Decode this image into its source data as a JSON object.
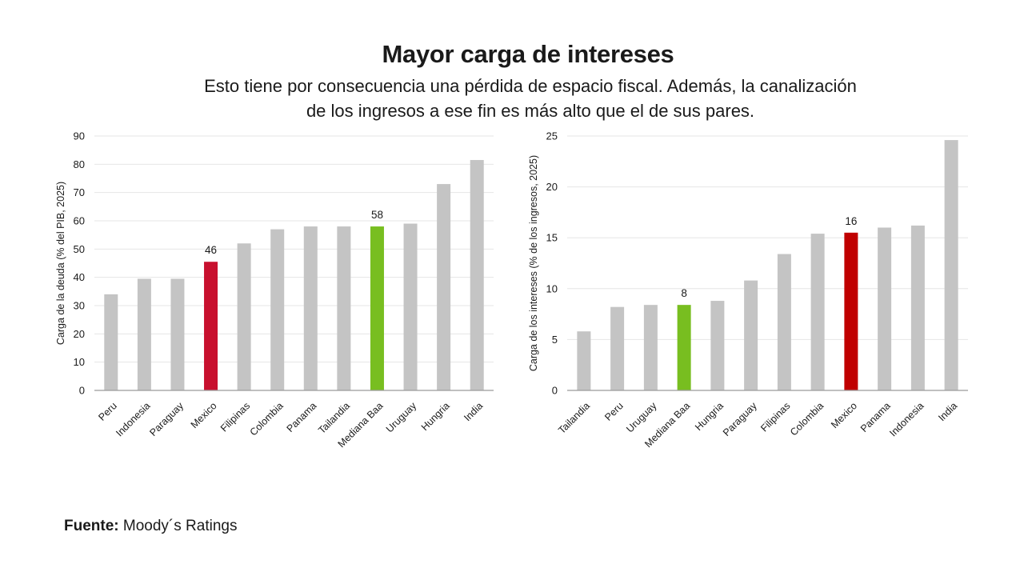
{
  "title": "Mayor carga de intereses",
  "subtitle_line1": "Esto tiene por consecuencia una pérdida de espacio fiscal. Además, la canalización",
  "subtitle_line2": "de los ingresos a ese fin es más alto que el de sus pares.",
  "source_label": "Fuente:",
  "source_text": "Moody´s Ratings",
  "colors": {
    "default_bar": "#c4c4c4",
    "mexico_left": "#c8102e",
    "mexico_right": "#c00000",
    "baa_median": "#78be20"
  },
  "chart_data": [
    {
      "type": "bar",
      "ylabel": "Carga de la deuda (% del PIB, 2025)",
      "ylim": [
        0,
        90
      ],
      "yticks": [
        0,
        10,
        20,
        30,
        40,
        50,
        60,
        70,
        80,
        90
      ],
      "grid": true,
      "categories": [
        "Peru",
        "Indonesia",
        "Paraguay",
        "Mexico",
        "Filipinas",
        "Colombia",
        "Panama",
        "Tailandia",
        "Mediana Baa",
        "Uruguay",
        "Hungria",
        "India"
      ],
      "values": [
        34,
        39.5,
        39.5,
        45.5,
        52,
        57,
        58,
        58,
        58,
        59,
        73,
        81.5
      ],
      "highlight": {
        "Mexico": "mexico_left",
        "Mediana Baa": "baa_median"
      },
      "data_labels": {
        "Mexico": "46",
        "Mediana Baa": "58"
      }
    },
    {
      "type": "bar",
      "ylabel": "Carga de los intereses (% de los ingresos, 2025)",
      "ylim": [
        0,
        25
      ],
      "yticks": [
        0,
        5,
        10,
        15,
        20,
        25
      ],
      "grid": true,
      "categories": [
        "Tailandia",
        "Peru",
        "Uruguay",
        "Mediana Baa",
        "Hungria",
        "Paraguay",
        "Filipinas",
        "Colombia",
        "Mexico",
        "Panama",
        "Indonesia",
        "India"
      ],
      "values": [
        5.8,
        8.2,
        8.4,
        8.4,
        8.8,
        10.8,
        13.4,
        15.4,
        15.5,
        16.0,
        16.2,
        24.6
      ],
      "highlight": {
        "Mediana Baa": "baa_median",
        "Mexico": "mexico_right"
      },
      "data_labels": {
        "Mediana Baa": "8",
        "Mexico": "16"
      }
    }
  ]
}
